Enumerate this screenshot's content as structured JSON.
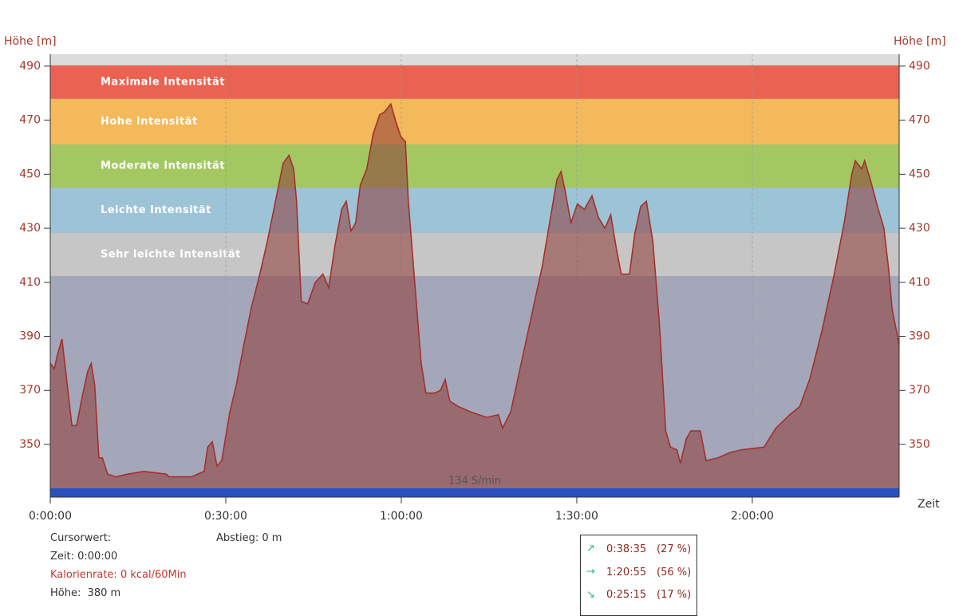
{
  "chart_data": {
    "type": "area",
    "ylabel": "Höhe [m]",
    "xlabel": "Zeit",
    "annotation": "134 S/min",
    "x": [
      0,
      0.7,
      1.2,
      2,
      2.9,
      3.7,
      4.5,
      5.5,
      6.4,
      7,
      7.6,
      8.3,
      8.9,
      9.8,
      11.2,
      13.2,
      16,
      19.8,
      20.3,
      24.1,
      26.3,
      26.9,
      27.7,
      28.5,
      29.3,
      30.7,
      31.8,
      33,
      34.4,
      35.7,
      37.1,
      38.5,
      39.8,
      40.8,
      41.6,
      42.1,
      42.9,
      44,
      45.3,
      46.6,
      47.6,
      48.7,
      49.8,
      50.6,
      51.4,
      52.2,
      53,
      54.1,
      55.2,
      56.3,
      57.1,
      58.2,
      59,
      59.9,
      60.7,
      61.2,
      62.3,
      63.4,
      64.2,
      65.7,
      66.7,
      67.5,
      68.3,
      69.8,
      71.9,
      74.6,
      76.6,
      77.3,
      78.7,
      80.3,
      82.1,
      84.1,
      85.5,
      86.6,
      87.3,
      87.9,
      89,
      90.1,
      91.3,
      92.6,
      93.7,
      94.8,
      95.8,
      96.8,
      97.6,
      99,
      99.9,
      100.9,
      101.9,
      103,
      104.1,
      105.2,
      106,
      107.1,
      107.7,
      108.7,
      109.5,
      111.1,
      112.1,
      114.1,
      116.2,
      118.2,
      122,
      124,
      126.4,
      128.1,
      129.8,
      131.9,
      133.9,
      135.7,
      137,
      137.6,
      138.7,
      139.2,
      140.3,
      141.4,
      142.5,
      143.3,
      143.9,
      145.1
    ],
    "series": [
      {
        "color": "#a3302a",
        "values": [
          380,
          378,
          383,
          389,
          372,
          357,
          357,
          368,
          377,
          380,
          372,
          345,
          345,
          339,
          338,
          339,
          340,
          339,
          338,
          338,
          340,
          349,
          351,
          342,
          344,
          362,
          372,
          386,
          401,
          412,
          425,
          440,
          454,
          457,
          452,
          440,
          403,
          402,
          410,
          413,
          408,
          424,
          437,
          440,
          429,
          432,
          446,
          452,
          465,
          472,
          473,
          476,
          470,
          464,
          462,
          440,
          410,
          380,
          369,
          369,
          370,
          374,
          366,
          364,
          362,
          360,
          361,
          356,
          362,
          378,
          396,
          416,
          434,
          448,
          451,
          445,
          432,
          439,
          437,
          442,
          434,
          430,
          435,
          422,
          413,
          413,
          428,
          438,
          440,
          425,
          395,
          355,
          349,
          348,
          343,
          352,
          355,
          355,
          344,
          345,
          347,
          348,
          349,
          356,
          361,
          364,
          374,
          392,
          412,
          432,
          450,
          455,
          452,
          455,
          447,
          438,
          430,
          415,
          400,
          387
        ]
      }
    ],
    "zones": [
      {
        "name": "Maximale Intensität",
        "color": "#ea6352",
        "range": [
          477.9,
          490.3
        ]
      },
      {
        "name": "Hohe Intensität",
        "color": "#f3b95b",
        "range": [
          461,
          477.9
        ]
      },
      {
        "name": "Moderate Intensität",
        "color": "#a3c862",
        "range": [
          445,
          461
        ]
      },
      {
        "name": "Leichte Intensität",
        "color": "#9dc3d7",
        "range": [
          428.3,
          445
        ]
      },
      {
        "name": "Sehr leichte Intensität",
        "color": "#c6c6c6",
        "range": [
          412.3,
          428.3
        ]
      }
    ],
    "xlim": [
      0,
      145.1
    ],
    "xticks": [
      {
        "value": 0,
        "label": "0:00:00"
      },
      {
        "value": 30,
        "label": "0:30:00"
      },
      {
        "value": 60,
        "label": "1:00:00"
      },
      {
        "value": 90,
        "label": "1:30:00"
      },
      {
        "value": 120,
        "label": "2:00:00"
      }
    ],
    "ylim": [
      330.5,
      494.4
    ],
    "yticks": [
      350,
      370,
      390,
      410,
      430,
      450,
      470,
      490
    ],
    "grid": true
  },
  "cursor": {
    "title": "Cursorwert:",
    "time": "Zeit: 0:00:00",
    "calorie": "Kalorienrate: 0 kcal/60Min",
    "height": "Höhe:  380 m",
    "descent": "Abstieg: 0 m"
  },
  "stats": {
    "rows": [
      [
        "0:38:35",
        "(27 %)"
      ],
      [
        "1:20:55",
        "(56 %)"
      ],
      [
        "0:25:15",
        "(17 %)"
      ]
    ]
  }
}
